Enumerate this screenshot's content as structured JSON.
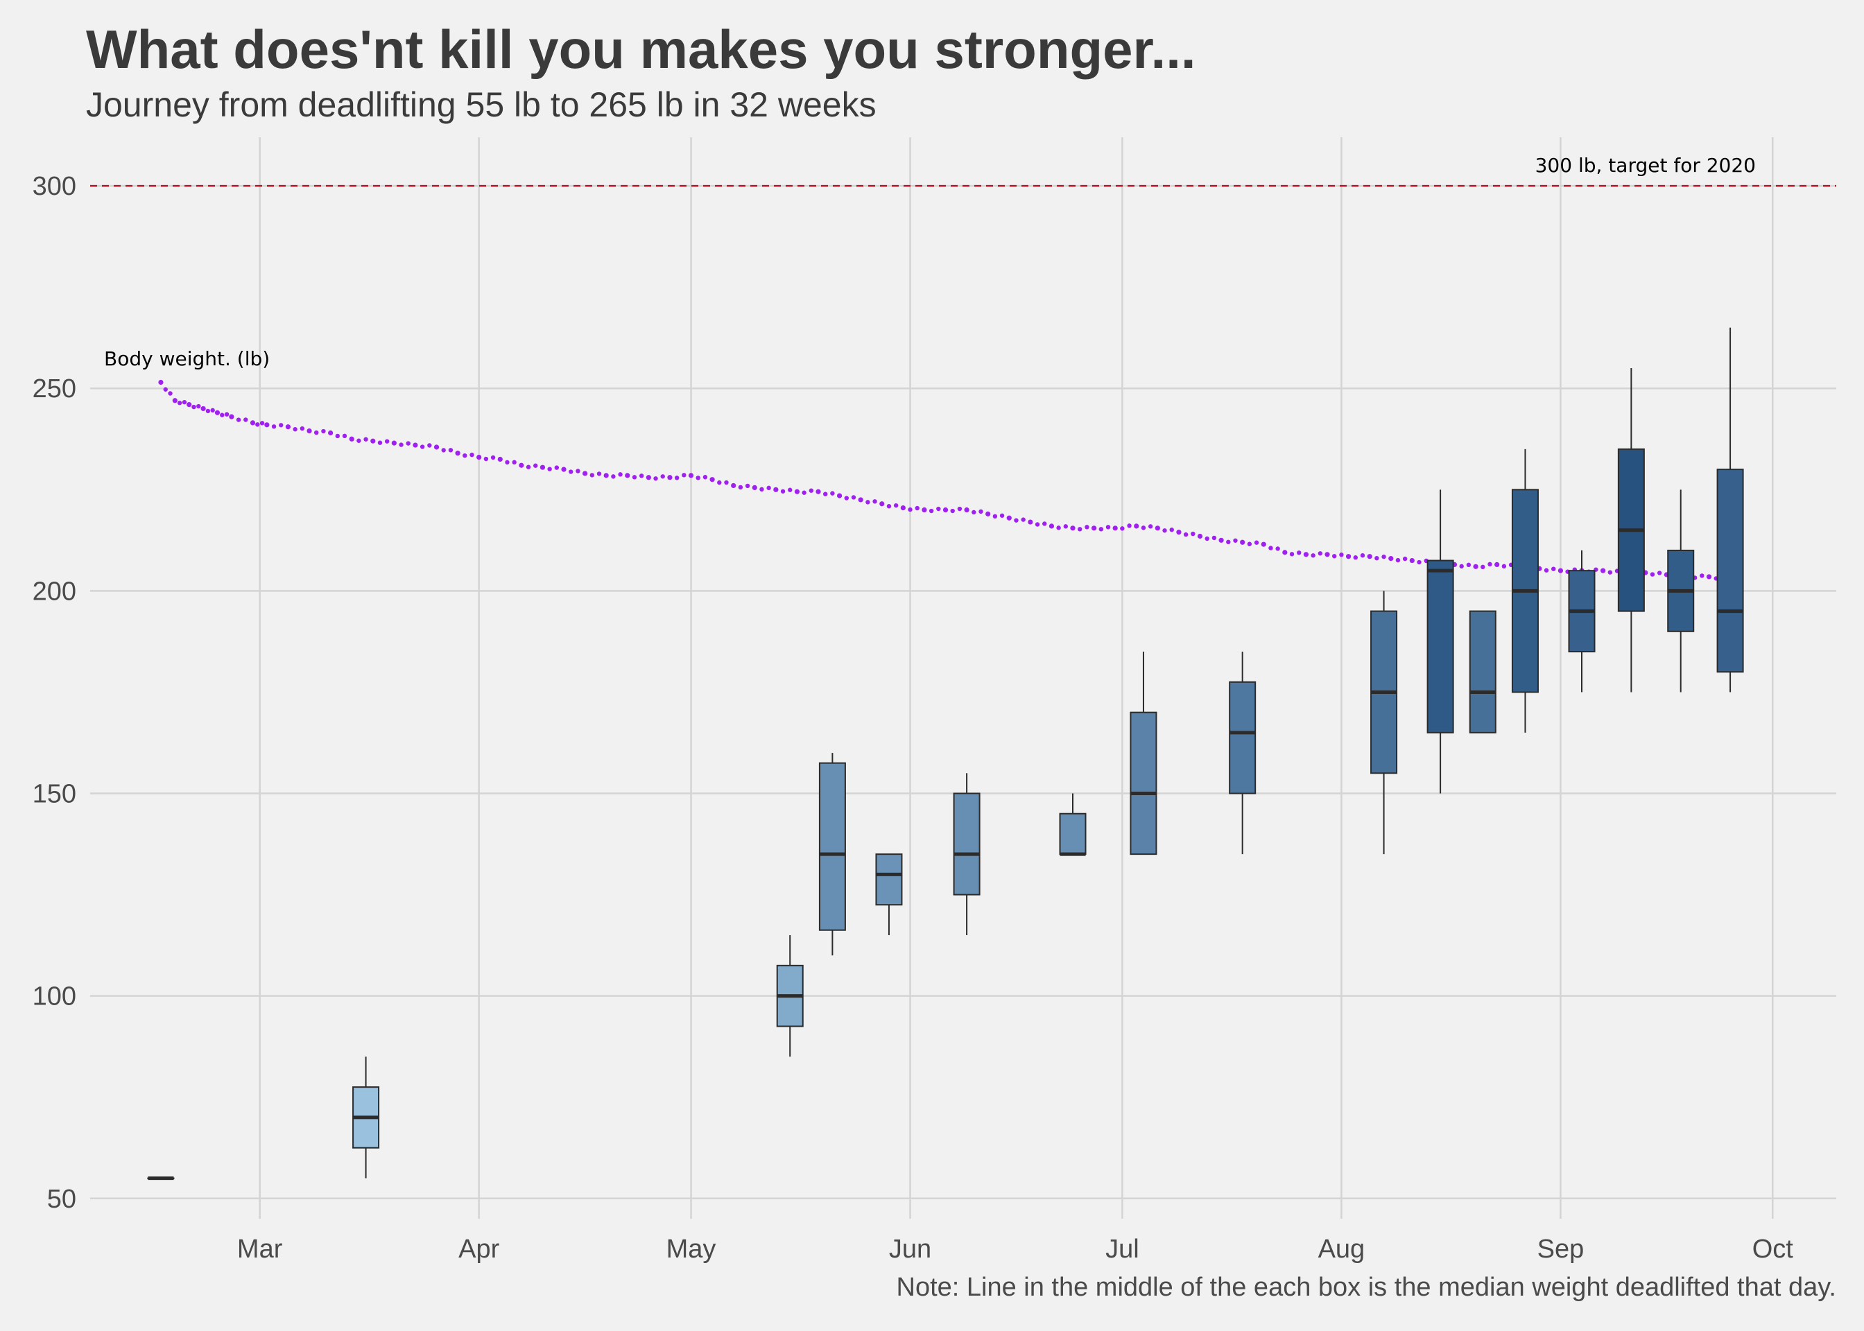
{
  "chart_data": {
    "type": "box",
    "title": "What does'nt kill you makes you stronger...",
    "subtitle": "Journey from deadlifting 55 lb to 265 lb in 32 weeks",
    "caption": "Note: Line in the middle of the each box is the median weight deadlifted that day.",
    "xlabel": "",
    "ylabel": "",
    "x_range": [
      "2019-02-05",
      "2019-10-10"
    ],
    "ylim": [
      45,
      312
    ],
    "y_ticks": [
      50,
      100,
      150,
      200,
      250,
      300
    ],
    "x_ticks": [
      {
        "date": "2019-03-01",
        "label": "Mar"
      },
      {
        "date": "2019-04-01",
        "label": "Apr"
      },
      {
        "date": "2019-05-01",
        "label": "May"
      },
      {
        "date": "2019-06-01",
        "label": "Jun"
      },
      {
        "date": "2019-07-01",
        "label": "Jul"
      },
      {
        "date": "2019-08-01",
        "label": "Aug"
      },
      {
        "date": "2019-09-01",
        "label": "Sep"
      },
      {
        "date": "2019-10-01",
        "label": "Oct"
      }
    ],
    "grid": true,
    "reference_line": {
      "y": 300,
      "label": "300 lb, target for 2020",
      "color": "#b2182b"
    },
    "series_colors": {
      "light": "#a6cde8",
      "dark": "#27517f",
      "outline": "#2b2b2b",
      "body_weight": "#a020f0"
    },
    "boxes": [
      {
        "date": "2019-02-15",
        "min": 55,
        "q1": 55,
        "median": 55,
        "q3": 55,
        "max": 55
      },
      {
        "date": "2019-03-16",
        "min": 55,
        "q1": 62.5,
        "median": 70,
        "q3": 77.5,
        "max": 85
      },
      {
        "date": "2019-05-15",
        "min": 85,
        "q1": 92.5,
        "median": 100,
        "q3": 107.5,
        "max": 115
      },
      {
        "date": "2019-05-21",
        "min": 110,
        "q1": 116.25,
        "median": 135,
        "q3": 157.5,
        "max": 160
      },
      {
        "date": "2019-05-29",
        "min": 115,
        "q1": 122.5,
        "median": 130,
        "q3": 135,
        "max": 135
      },
      {
        "date": "2019-06-09",
        "min": 115,
        "q1": 125,
        "median": 135,
        "q3": 150,
        "max": 155
      },
      {
        "date": "2019-06-24",
        "min": 135,
        "q1": 135,
        "median": 135,
        "q3": 145,
        "max": 150
      },
      {
        "date": "2019-07-04",
        "min": 135,
        "q1": 135,
        "median": 150,
        "q3": 170,
        "max": 185
      },
      {
        "date": "2019-07-18",
        "min": 135,
        "q1": 150,
        "median": 165,
        "q3": 177.5,
        "max": 185
      },
      {
        "date": "2019-08-07",
        "min": 135,
        "q1": 155,
        "median": 175,
        "q3": 195,
        "max": 200
      },
      {
        "date": "2019-08-15",
        "min": 150,
        "q1": 165,
        "median": 205,
        "q3": 207.5,
        "max": 225
      },
      {
        "date": "2019-08-21",
        "min": 165,
        "q1": 165,
        "median": 175,
        "q3": 195,
        "max": 195
      },
      {
        "date": "2019-08-27",
        "min": 165,
        "q1": 175,
        "median": 200,
        "q3": 225,
        "max": 235
      },
      {
        "date": "2019-09-04",
        "min": 175,
        "q1": 185,
        "median": 195,
        "q3": 205,
        "max": 210
      },
      {
        "date": "2019-09-11",
        "min": 175,
        "q1": 195,
        "median": 215,
        "q3": 235,
        "max": 255
      },
      {
        "date": "2019-09-18",
        "min": 175,
        "q1": 190,
        "median": 200,
        "q3": 210,
        "max": 225
      },
      {
        "date": "2019-09-25",
        "min": 175,
        "q1": 180,
        "median": 195,
        "q3": 230,
        "max": 265
      }
    ],
    "body_weight": {
      "label": "Body weight. (lb)",
      "points": [
        [
          "2019-02-15",
          251.5
        ],
        [
          "2019-02-17",
          247
        ],
        [
          "2019-02-19",
          246
        ],
        [
          "2019-02-21",
          245
        ],
        [
          "2019-02-23",
          244
        ],
        [
          "2019-02-25",
          243
        ],
        [
          "2019-02-28",
          241.5
        ],
        [
          "2019-03-02",
          241
        ],
        [
          "2019-03-05",
          240.5
        ],
        [
          "2019-03-08",
          239.5
        ],
        [
          "2019-03-11",
          239
        ],
        [
          "2019-03-14",
          237.5
        ],
        [
          "2019-03-17",
          237
        ],
        [
          "2019-03-20",
          236.5
        ],
        [
          "2019-03-23",
          236
        ],
        [
          "2019-03-26",
          235.5
        ],
        [
          "2019-03-29",
          234
        ],
        [
          "2019-04-01",
          233
        ],
        [
          "2019-04-04",
          232.5
        ],
        [
          "2019-04-07",
          231
        ],
        [
          "2019-04-10",
          230.5
        ],
        [
          "2019-04-13",
          230
        ],
        [
          "2019-04-16",
          229
        ],
        [
          "2019-04-19",
          228.5
        ],
        [
          "2019-04-22",
          228.5
        ],
        [
          "2019-04-25",
          228
        ],
        [
          "2019-04-28",
          228
        ],
        [
          "2019-05-01",
          228.5
        ],
        [
          "2019-05-04",
          227.5
        ],
        [
          "2019-05-07",
          226
        ],
        [
          "2019-05-10",
          225.5
        ],
        [
          "2019-05-13",
          225
        ],
        [
          "2019-05-16",
          224.5
        ],
        [
          "2019-05-19",
          224.5
        ],
        [
          "2019-05-22",
          223.5
        ],
        [
          "2019-05-25",
          222.5
        ],
        [
          "2019-05-28",
          221.5
        ],
        [
          "2019-05-31",
          220.5
        ],
        [
          "2019-06-03",
          220
        ],
        [
          "2019-06-06",
          220
        ],
        [
          "2019-06-09",
          220
        ],
        [
          "2019-06-12",
          219
        ],
        [
          "2019-06-15",
          218
        ],
        [
          "2019-06-18",
          217
        ],
        [
          "2019-06-21",
          216
        ],
        [
          "2019-06-24",
          215.5
        ],
        [
          "2019-06-27",
          215.5
        ],
        [
          "2019-06-30",
          215.5
        ],
        [
          "2019-07-03",
          216
        ],
        [
          "2019-07-06",
          215.5
        ],
        [
          "2019-07-09",
          214.5
        ],
        [
          "2019-07-12",
          213.5
        ],
        [
          "2019-07-15",
          212.5
        ],
        [
          "2019-07-18",
          212
        ],
        [
          "2019-07-21",
          211.5
        ],
        [
          "2019-07-24",
          209.5
        ],
        [
          "2019-07-27",
          209
        ],
        [
          "2019-07-30",
          209
        ],
        [
          "2019-08-02",
          208.5
        ],
        [
          "2019-08-05",
          208.5
        ],
        [
          "2019-08-08",
          208
        ],
        [
          "2019-08-11",
          207.5
        ],
        [
          "2019-08-14",
          207
        ],
        [
          "2019-08-17",
          206.5
        ],
        [
          "2019-08-20",
          206
        ],
        [
          "2019-08-23",
          206.5
        ],
        [
          "2019-08-26",
          206
        ],
        [
          "2019-08-29",
          205.5
        ],
        [
          "2019-09-01",
          205
        ],
        [
          "2019-09-04",
          205
        ],
        [
          "2019-09-07",
          205
        ],
        [
          "2019-09-10",
          204.5
        ],
        [
          "2019-09-13",
          204.5
        ],
        [
          "2019-09-16",
          204
        ],
        [
          "2019-09-19",
          203.5
        ],
        [
          "2019-09-22",
          203.5
        ],
        [
          "2019-09-25",
          203
        ]
      ]
    }
  }
}
